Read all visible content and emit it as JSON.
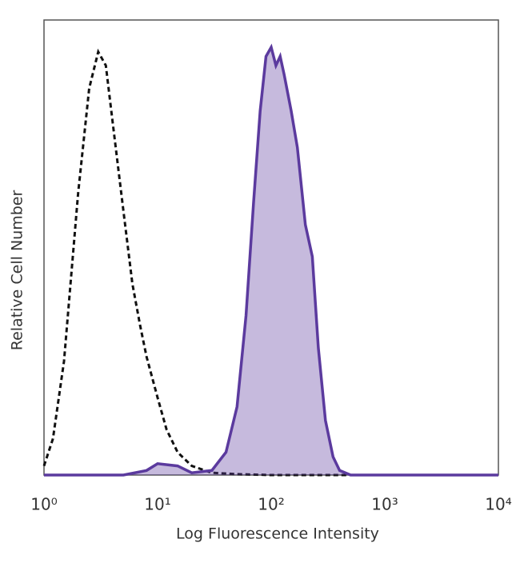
{
  "chart_data": {
    "type": "line",
    "xlabel": "Log Fluorescence Intensity",
    "ylabel": "Relative Cell Number",
    "xscale": "log",
    "xlim": [
      1,
      10000
    ],
    "ylim": [
      0,
      100
    ],
    "xticks": [
      {
        "value": 1,
        "label": "10⁰"
      },
      {
        "value": 10,
        "label": "10¹"
      },
      {
        "value": 100,
        "label": "10²"
      },
      {
        "value": 1000,
        "label": "10³"
      },
      {
        "value": 10000,
        "label": "10⁴"
      }
    ],
    "series": [
      {
        "color": "#111111",
        "dashed": true,
        "fill": false,
        "x": [
          1,
          1.2,
          1.5,
          2,
          2.5,
          3,
          3.5,
          4,
          5,
          6,
          7,
          8,
          10,
          12,
          15,
          20,
          30,
          50,
          100,
          10000
        ],
        "values": [
          2,
          8,
          25,
          62,
          85,
          93,
          90,
          78,
          58,
          42,
          33,
          26,
          17,
          10,
          5,
          2,
          0.5,
          0.2,
          0,
          0
        ]
      },
      {
        "color": "#5b3a9e",
        "dashed": false,
        "fill": true,
        "x": [
          1,
          5,
          8,
          10,
          15,
          20,
          30,
          40,
          50,
          60,
          70,
          80,
          90,
          100,
          110,
          120,
          130,
          150,
          170,
          200,
          230,
          260,
          300,
          350,
          400,
          500,
          10000
        ],
        "values": [
          0,
          0,
          1,
          2.5,
          2,
          0.5,
          1,
          5,
          15,
          35,
          60,
          80,
          92,
          94,
          90,
          92,
          88,
          80,
          72,
          55,
          48,
          28,
          12,
          4,
          1,
          0,
          0
        ]
      }
    ]
  }
}
